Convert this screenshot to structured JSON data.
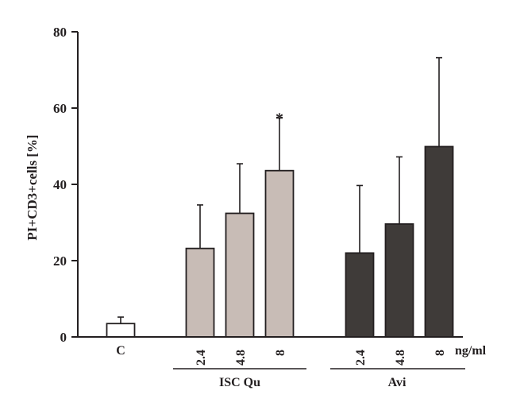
{
  "chart_data": {
    "type": "bar",
    "ylabel": "PI+CD3+cells [%]",
    "ylim": [
      0,
      80
    ],
    "yticks": [
      0,
      20,
      40,
      60,
      80
    ],
    "x_unit_label": "ng/ml",
    "groups": [
      {
        "name": "",
        "categories": [
          "C"
        ]
      },
      {
        "name": "ISC Qu",
        "categories": [
          "2.4",
          "4.8",
          "8"
        ]
      },
      {
        "name": "Avi",
        "categories": [
          "2.4",
          "4.8",
          "8"
        ]
      }
    ],
    "bars": [
      {
        "category": "C",
        "group": "",
        "value": 3.5,
        "error": 1.7,
        "annotation": "",
        "color": "#ffffff"
      },
      {
        "category": "2.4",
        "group": "ISC Qu",
        "value": 23.2,
        "error": 11.4,
        "annotation": "",
        "color": "#c8bcb6"
      },
      {
        "category": "4.8",
        "group": "ISC Qu",
        "value": 32.4,
        "error": 13.0,
        "annotation": "",
        "color": "#c8bcb6"
      },
      {
        "category": "8",
        "group": "ISC Qu",
        "value": 43.6,
        "error": 13.8,
        "annotation": "*",
        "color": "#c8bcb6"
      },
      {
        "category": "2.4",
        "group": "Avi",
        "value": 22.0,
        "error": 17.7,
        "annotation": "",
        "color": "#3f3b39"
      },
      {
        "category": "4.8",
        "group": "Avi",
        "value": 29.6,
        "error": 17.6,
        "annotation": "",
        "color": "#3f3b39"
      },
      {
        "category": "8",
        "group": "Avi",
        "value": 49.9,
        "error": 23.3,
        "annotation": "",
        "color": "#3f3b39"
      }
    ],
    "grid": false,
    "legend": "none"
  }
}
